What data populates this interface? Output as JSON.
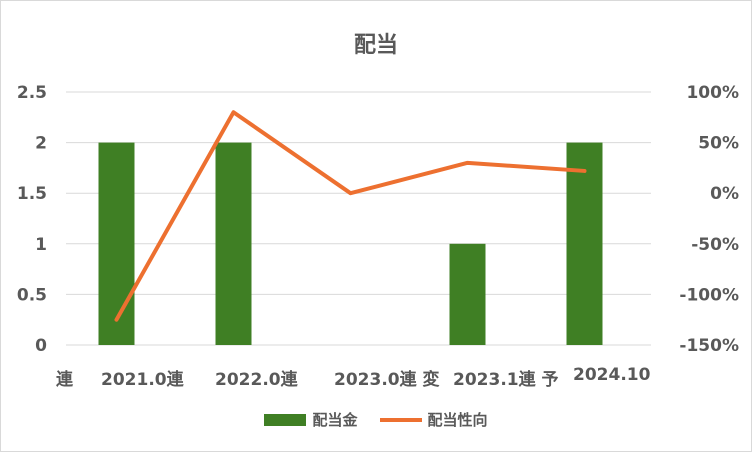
{
  "chart_data": {
    "type": "bar+line",
    "title": "配当",
    "categories": [
      "連",
      "2021.0連",
      "2022.0連",
      "2023.0連 変",
      "2023.1連 予 2024.10"
    ],
    "x_tick_fragments": [
      "連",
      "2021.0連",
      "2022.0連",
      "2023.0連 変",
      "2023.1連 予",
      "2024.10"
    ],
    "series": [
      {
        "name": "配当金",
        "type": "bar",
        "axis": "left",
        "color": "#3f7f24",
        "values": [
          2,
          2,
          0,
          1,
          2
        ]
      },
      {
        "name": "配当性向",
        "type": "line",
        "axis": "right",
        "color": "#ed7030",
        "values": [
          -125,
          80,
          0,
          30,
          22
        ]
      }
    ],
    "y_left": {
      "ylim": [
        0,
        2.5
      ],
      "ticks": [
        "0",
        "0.5",
        "1",
        "1.5",
        "2",
        "2.5"
      ]
    },
    "y_right": {
      "ylim": [
        -150,
        100
      ],
      "ticks": [
        "-150%",
        "-100%",
        "-50%",
        "0%",
        "50%",
        "100%"
      ]
    },
    "grid": true,
    "legend": "bottom"
  }
}
